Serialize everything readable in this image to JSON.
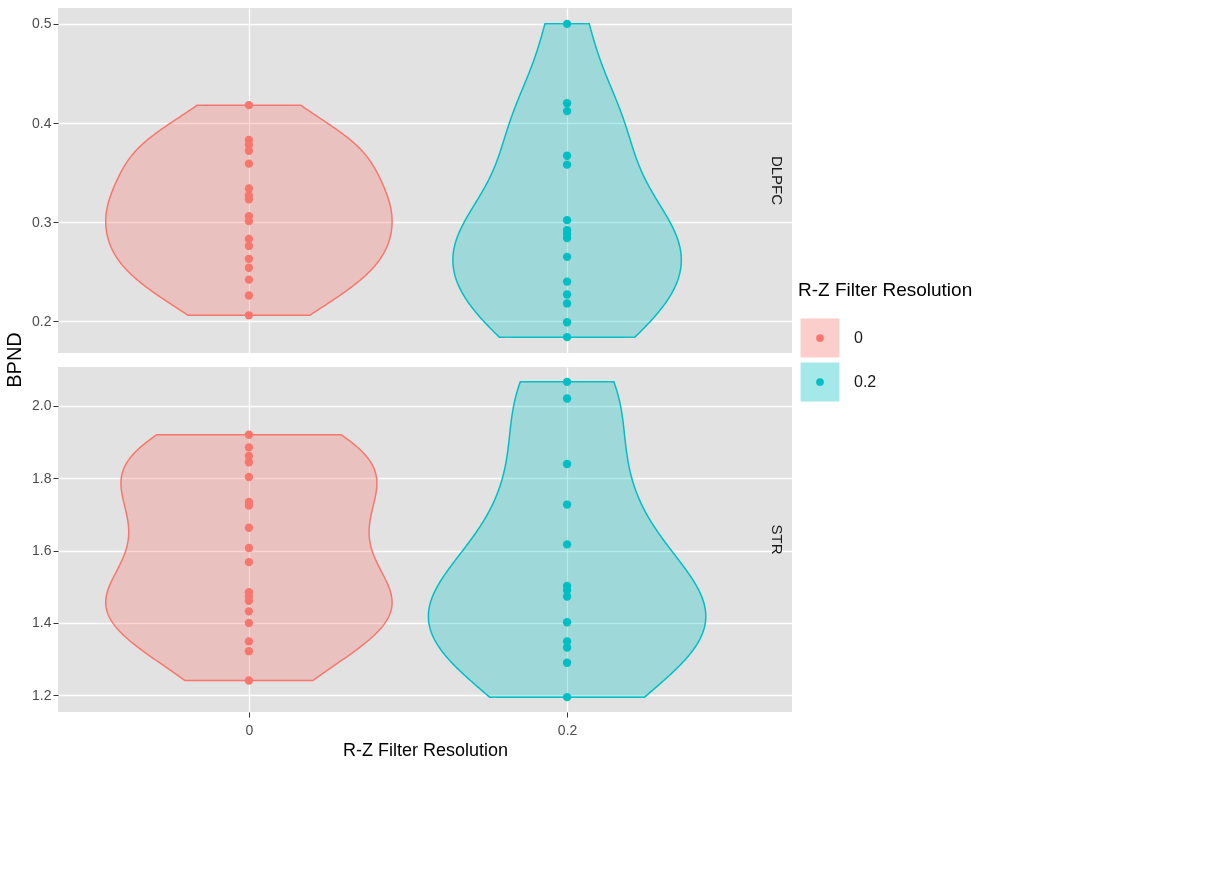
{
  "chart_data": [
    {
      "type": "scatter",
      "title": "DLPFC",
      "ylabel": "BPND",
      "legend_title": "R-Z Filter Resolution",
      "legend": "right",
      "grid": true,
      "tick_labels": "y",
      "marker": "circle",
      "categories": [
        "0",
        "0.2"
      ],
      "ylim": [
        0.168,
        0.516
      ],
      "yticks": [
        0.2,
        0.3,
        0.4,
        0.5
      ],
      "series": [
        {
          "name": "0",
          "color": "#f8766d",
          "x": [
            "0",
            "0",
            "0",
            "0",
            "0",
            "0",
            "0",
            "0",
            "0",
            "0",
            "0",
            "0",
            "0",
            "0",
            "0",
            "0",
            "0"
          ],
          "values": [
            0.418,
            0.383,
            0.378,
            0.372,
            0.359,
            0.334,
            0.327,
            0.323,
            0.306,
            0.301,
            0.283,
            0.276,
            0.263,
            0.254,
            0.242,
            0.226,
            0.206
          ]
        },
        {
          "name": "0.2",
          "color": "#00bfc4",
          "x": [
            "0.2",
            "0.2",
            "0.2",
            "0.2",
            "0.2",
            "0.2",
            "0.2",
            "0.2",
            "0.2",
            "0.2",
            "0.2",
            "0.2",
            "0.2",
            "0.2",
            "0.2"
          ],
          "values": [
            0.5,
            0.42,
            0.412,
            0.367,
            0.358,
            0.302,
            0.292,
            0.288,
            0.284,
            0.265,
            0.24,
            0.227,
            0.218,
            0.199,
            0.184
          ]
        }
      ]
    },
    {
      "type": "scatter",
      "title": "STR",
      "xlabel": "R-Z Filter Resolution",
      "grid": true,
      "marker": "circle",
      "categories": [
        "0",
        "0.2"
      ],
      "ylim": [
        1.154,
        2.107
      ],
      "yticks": [
        1.2,
        1.4,
        1.6,
        1.8,
        {
          "value": 2.0,
          "label": "2.0"
        }
      ],
      "series": [
        {
          "name": "0",
          "color": "#f8766d",
          "x": [
            "0",
            "0",
            "0",
            "0",
            "0",
            "0",
            "0",
            "0",
            "0",
            "0",
            "0",
            "0",
            "0",
            "0",
            "0",
            "0",
            "0",
            "0"
          ],
          "values": [
            1.92,
            1.885,
            1.861,
            1.844,
            1.803,
            1.734,
            1.724,
            1.663,
            1.607,
            1.568,
            1.485,
            1.473,
            1.461,
            1.432,
            1.4,
            1.349,
            1.322,
            1.241
          ]
        },
        {
          "name": "0.2",
          "color": "#00bfc4",
          "x": [
            "0.2",
            "0.2",
            "0.2",
            "0.2",
            "0.2",
            "0.2",
            "0.2",
            "0.2",
            "0.2",
            "0.2",
            "0.2",
            "0.2",
            "0.2"
          ],
          "values": [
            2.066,
            2.02,
            1.839,
            1.727,
            1.617,
            1.502,
            1.49,
            1.473,
            1.402,
            1.349,
            1.332,
            1.29,
            1.195
          ]
        }
      ]
    }
  ]
}
